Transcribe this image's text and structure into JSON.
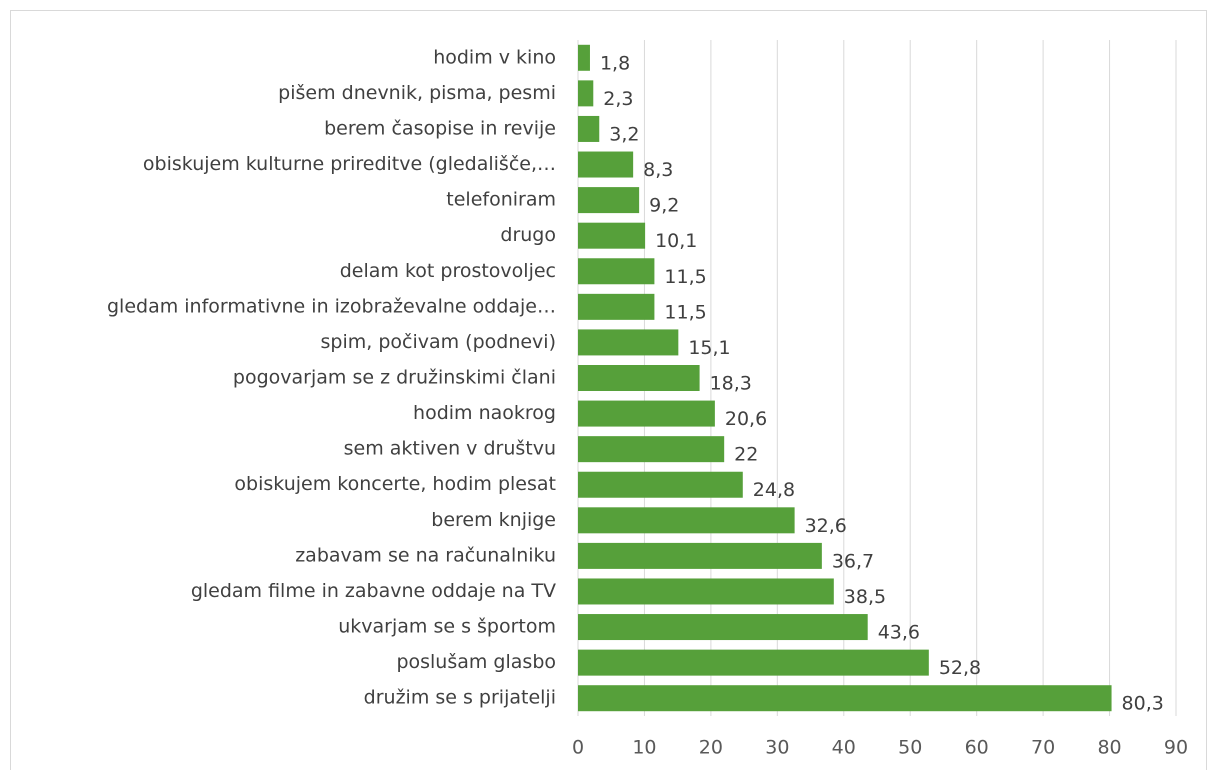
{
  "chart_data": {
    "type": "bar",
    "orientation": "horizontal",
    "categories": [
      "hodim v kino",
      "pišem dnevnik, pisma, pesmi",
      "berem časopise in revije",
      "obiskujem kulturne prireditve (gledališče,…",
      "telefoniram",
      "drugo",
      "delam kot prostovoljec",
      "gledam informativne in izobraževalne oddaje…",
      "spim, počivam (podnevi)",
      "pogovarjam se z družinskimi člani",
      "hodim naokrog",
      "sem aktiven v društvu",
      "obiskujem koncerte, hodim plesat",
      "berem knjige",
      "zabavam se na računalniku",
      "gledam filme in zabavne oddaje na TV",
      "ukvarjam se s športom",
      "poslušam glasbo",
      "družim se s prijatelji"
    ],
    "values": [
      1.8,
      2.3,
      3.2,
      8.3,
      9.2,
      10.1,
      11.5,
      11.5,
      15.1,
      18.3,
      20.6,
      22,
      24.8,
      32.6,
      36.7,
      38.5,
      43.6,
      52.8,
      80.3
    ],
    "value_labels": [
      "1,8",
      "2,3",
      "3,2",
      "8,3",
      "9,2",
      "10,1",
      "11,5",
      "11,5",
      "15,1",
      "18,3",
      "20,6",
      "22",
      "24,8",
      "32,6",
      "36,7",
      "38,5",
      "43,6",
      "52,8",
      "80,3"
    ],
    "color": "#56a03a",
    "xlim": [
      0,
      90
    ],
    "xticks": [
      0,
      10,
      20,
      30,
      40,
      50,
      60,
      70,
      80,
      90
    ],
    "grid": true
  }
}
